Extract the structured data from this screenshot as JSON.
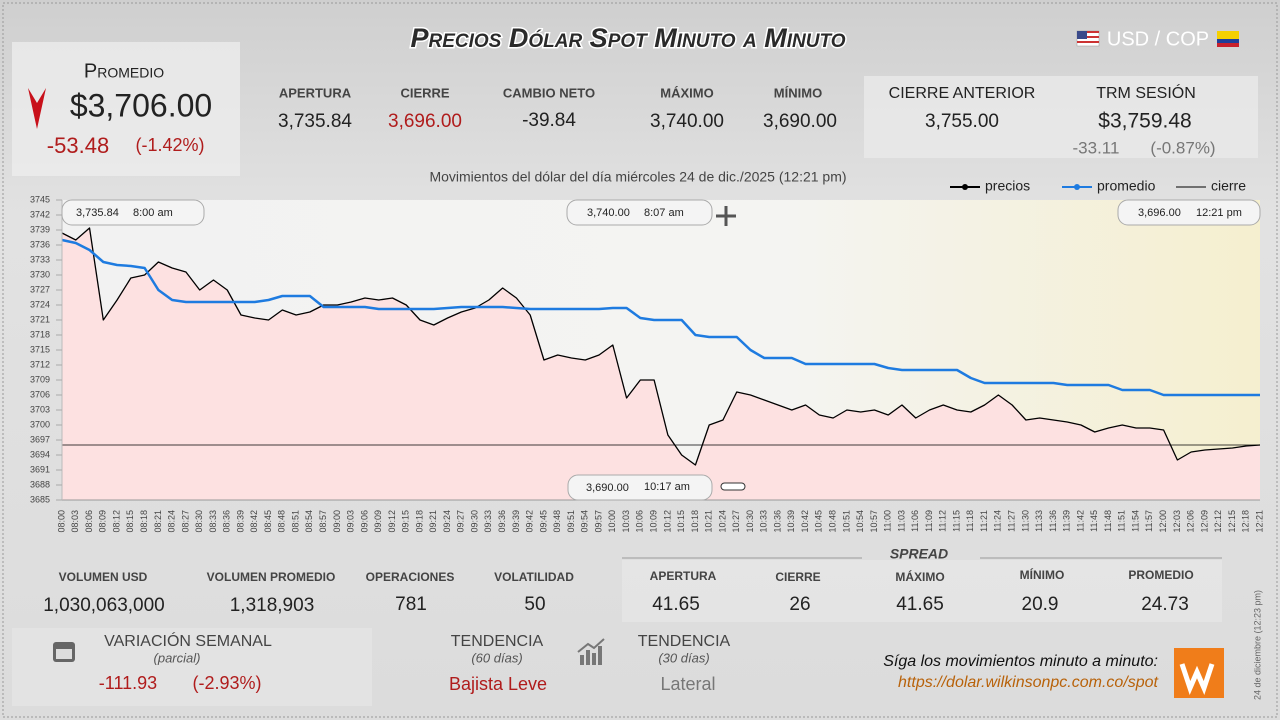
{
  "header": {
    "title": "Precios Dólar Spot Minuto a Minuto",
    "pair": "USD / COP"
  },
  "average": {
    "label": "Promedio",
    "value": "$3,706.00",
    "change": "-53.48",
    "change_pct": "(-1.42%)"
  },
  "stats": [
    {
      "label": "APERTURA",
      "value": "3,735.84"
    },
    {
      "label": "CIERRE",
      "value": "3,696.00"
    },
    {
      "label": "CAMBIO NETO",
      "value": "-39.84"
    },
    {
      "label": "MÁXIMO",
      "value": "3,740.00"
    },
    {
      "label": "MÍNIMO",
      "value": "3,690.00"
    }
  ],
  "previous_close": {
    "label": "CIERRE ANTERIOR",
    "value": "3,755.00"
  },
  "trm": {
    "label": "TRM SESIÓN",
    "value": "$3,759.48",
    "change": "-33.11",
    "change_pct": "(-0.87%)"
  },
  "chart_data": {
    "type": "line",
    "title": "Movimientos del dólar del día miércoles 24 de dic./2025 (12:21 pm)",
    "categories": [
      "08:00",
      "08:03",
      "08:06",
      "08:09",
      "08:12",
      "08:15",
      "08:18",
      "08:21",
      "08:24",
      "08:27",
      "08:30",
      "08:33",
      "08:36",
      "08:39",
      "08:42",
      "08:45",
      "08:48",
      "08:51",
      "08:54",
      "08:57",
      "09:00",
      "09:03",
      "09:06",
      "09:09",
      "09:12",
      "09:15",
      "09:18",
      "09:21",
      "09:24",
      "09:27",
      "09:30",
      "09:33",
      "09:36",
      "09:39",
      "09:42",
      "09:45",
      "09:48",
      "09:51",
      "09:54",
      "09:57",
      "10:00",
      "10:03",
      "10:06",
      "10:09",
      "10:12",
      "10:15",
      "10:18",
      "10:21",
      "10:24",
      "10:27",
      "10:30",
      "10:33",
      "10:36",
      "10:39",
      "10:42",
      "10:45",
      "10:48",
      "10:51",
      "10:54",
      "10:57",
      "11:00",
      "11:03",
      "11:06",
      "11:09",
      "11:12",
      "11:15",
      "11:18",
      "11:21",
      "11:24",
      "11:27",
      "11:30",
      "11:33",
      "11:36",
      "11:39",
      "11:42",
      "11:45",
      "11:48",
      "11:51",
      "11:54",
      "11:57",
      "12:00",
      "12:03",
      "12:06",
      "12:09",
      "12:12",
      "12:15",
      "12:18",
      "12:21"
    ],
    "series": [
      {
        "name": "precios",
        "color": "#000000",
        "values": [
          3738.4,
          3737,
          3739.4,
          3721,
          3725,
          3729.4,
          3730,
          3732.6,
          3731.4,
          3730.6,
          3727,
          3729,
          3727,
          3722,
          3721.4,
          3721,
          3723,
          3722,
          3722.6,
          3724,
          3724,
          3724.6,
          3725.4,
          3725,
          3725.4,
          3724,
          3721,
          3720,
          3721.4,
          3722.6,
          3723.4,
          3725,
          3727.4,
          3725.4,
          3722,
          3713,
          3714,
          3713.4,
          3713,
          3714,
          3716,
          3705.4,
          3709,
          3709,
          3698,
          3694,
          3692,
          3700,
          3701,
          3706.6,
          3706,
          3705,
          3704,
          3703,
          3704,
          3702,
          3701.4,
          3703,
          3702.6,
          3703,
          3702,
          3704,
          3701.4,
          3703,
          3704,
          3703,
          3702.6,
          3704,
          3706,
          3704,
          3701,
          3701.4,
          3701,
          3700.6,
          3700,
          3698.6,
          3699.4,
          3700,
          3699.4,
          3699.4,
          3699,
          3693,
          3694.6,
          3695,
          3695.2,
          3695.4,
          3695.8,
          3696
        ]
      },
      {
        "name": "promedio",
        "color": "#1e7be0",
        "values": [
          3737,
          3736.4,
          3735,
          3732.6,
          3732,
          3731.8,
          3731.4,
          3727,
          3725,
          3724.6,
          3724.6,
          3724.6,
          3724.6,
          3724.6,
          3724.6,
          3725,
          3725.8,
          3725.8,
          3725.8,
          3723.6,
          3723.6,
          3723.6,
          3723.6,
          3723.2,
          3723.2,
          3723.2,
          3723.2,
          3723.2,
          3723.4,
          3723.6,
          3723.6,
          3723.6,
          3723.6,
          3723.4,
          3723.2,
          3723.2,
          3723.2,
          3723.2,
          3723.2,
          3723.2,
          3723.4,
          3723.4,
          3721.4,
          3721,
          3721,
          3721,
          3718,
          3717.6,
          3717.6,
          3717.6,
          3715,
          3713.4,
          3713.4,
          3713.4,
          3712.2,
          3712.2,
          3712.2,
          3712.2,
          3712.2,
          3712.2,
          3711.4,
          3711,
          3711,
          3711,
          3711,
          3711,
          3709.4,
          3708.4,
          3708.4,
          3708.4,
          3708.4,
          3708.4,
          3708.4,
          3708,
          3708,
          3708,
          3708,
          3707,
          3707,
          3707,
          3706,
          3706,
          3706,
          3706,
          3706,
          3706,
          3706,
          3706
        ]
      }
    ],
    "reference": {
      "name": "cierre",
      "color": "#000000",
      "value": 3696
    },
    "area_color": "#fde1e1",
    "ylim": [
      3685,
      3745
    ],
    "yticks": [
      3685,
      3688,
      3691,
      3694,
      3697,
      3700,
      3703,
      3706,
      3709,
      3712,
      3715,
      3718,
      3721,
      3724,
      3727,
      3730,
      3733,
      3736,
      3739,
      3742,
      3745
    ],
    "annotations": [
      {
        "price": "3,735.84",
        "time": "8:00 am"
      },
      {
        "price": "3,740.00",
        "time": "8:07 am"
      },
      {
        "price": "3,696.00",
        "time": "12:21 pm"
      },
      {
        "price": "3,690.00",
        "time": "10:17 am"
      }
    ]
  },
  "volume": [
    {
      "label": "VOLUMEN USD",
      "value": "1,030,063,000"
    },
    {
      "label": "VOLUMEN PROMEDIO",
      "value": "1,318,903"
    },
    {
      "label": "OPERACIONES",
      "value": "781"
    },
    {
      "label": "VOLATILIDAD",
      "value": "50"
    }
  ],
  "spread": {
    "title": "SPREAD",
    "items": [
      {
        "label": "APERTURA",
        "value": "41.65"
      },
      {
        "label": "CIERRE",
        "value": "26"
      },
      {
        "label": "MÁXIMO",
        "value": "41.65"
      },
      {
        "label": "MÍNIMO",
        "value": "20.9"
      },
      {
        "label": "PROMEDIO",
        "value": "24.73"
      }
    ]
  },
  "weekly": {
    "label": "VARIACIÓN SEMANAL",
    "note": "(parcial)",
    "change": "-111.93",
    "change_pct": "(-2.93%)"
  },
  "trend60": {
    "label": "TENDENCIA",
    "note": "(60 días)",
    "value": "Bajista Leve"
  },
  "trend30": {
    "label": "TENDENCIA",
    "note": "(30 días)",
    "value": "Lateral"
  },
  "footer": {
    "text": "Síga los movimientos minuto a minuto:",
    "url": "https://dolar.wilkinsonpc.com.co/spot",
    "timestamp": "24 de diciembre (12:23 pm)"
  }
}
